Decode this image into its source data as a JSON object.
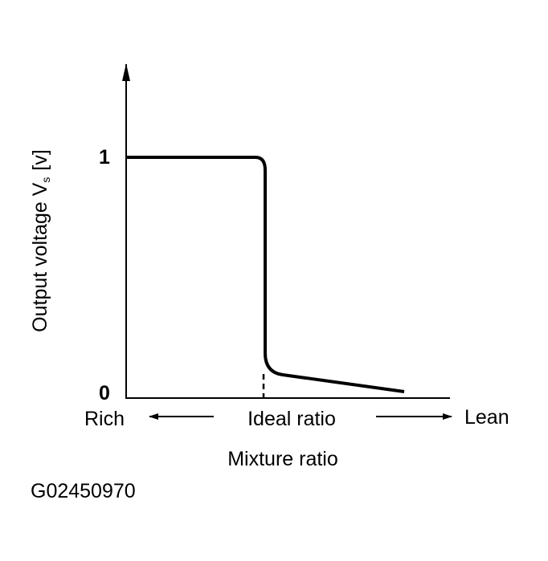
{
  "y_axis": {
    "label": "Output voltage V",
    "subscript": "s",
    "unit": "[v]",
    "ticks": [
      "1",
      "0"
    ]
  },
  "x_axis": {
    "left": "Rich",
    "middle": "Ideal ratio",
    "right": "Lean",
    "label": "Mixture ratio"
  },
  "figure_id": "G02450970"
}
